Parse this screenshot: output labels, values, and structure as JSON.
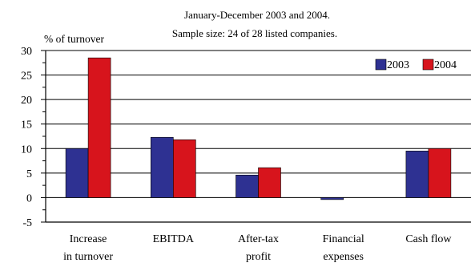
{
  "chart_data": {
    "type": "bar",
    "title": "",
    "subtitle_lines": [
      "January-December 2003 and 2004.",
      "Sample size: 24 of 28 listed companies."
    ],
    "ylabel": "% of turnover",
    "xlabel": "",
    "ylim": [
      -5,
      30
    ],
    "yticks": [
      30,
      25,
      20,
      15,
      10,
      5,
      0,
      -5
    ],
    "grid": true,
    "legend_position": "top-right",
    "categories": [
      [
        "Increase",
        "in turnover"
      ],
      [
        "EBITDA"
      ],
      [
        "After-tax",
        "profit"
      ],
      [
        "Financial",
        "expenses"
      ],
      [
        "Cash flow"
      ]
    ],
    "series": [
      {
        "name": "2003",
        "color": "#2e3192",
        "values": [
          10.0,
          12.3,
          4.6,
          -0.4,
          9.5
        ]
      },
      {
        "name": "2004",
        "color": "#d7141c",
        "values": [
          28.5,
          11.8,
          6.1,
          0.0,
          10.0
        ]
      }
    ]
  }
}
